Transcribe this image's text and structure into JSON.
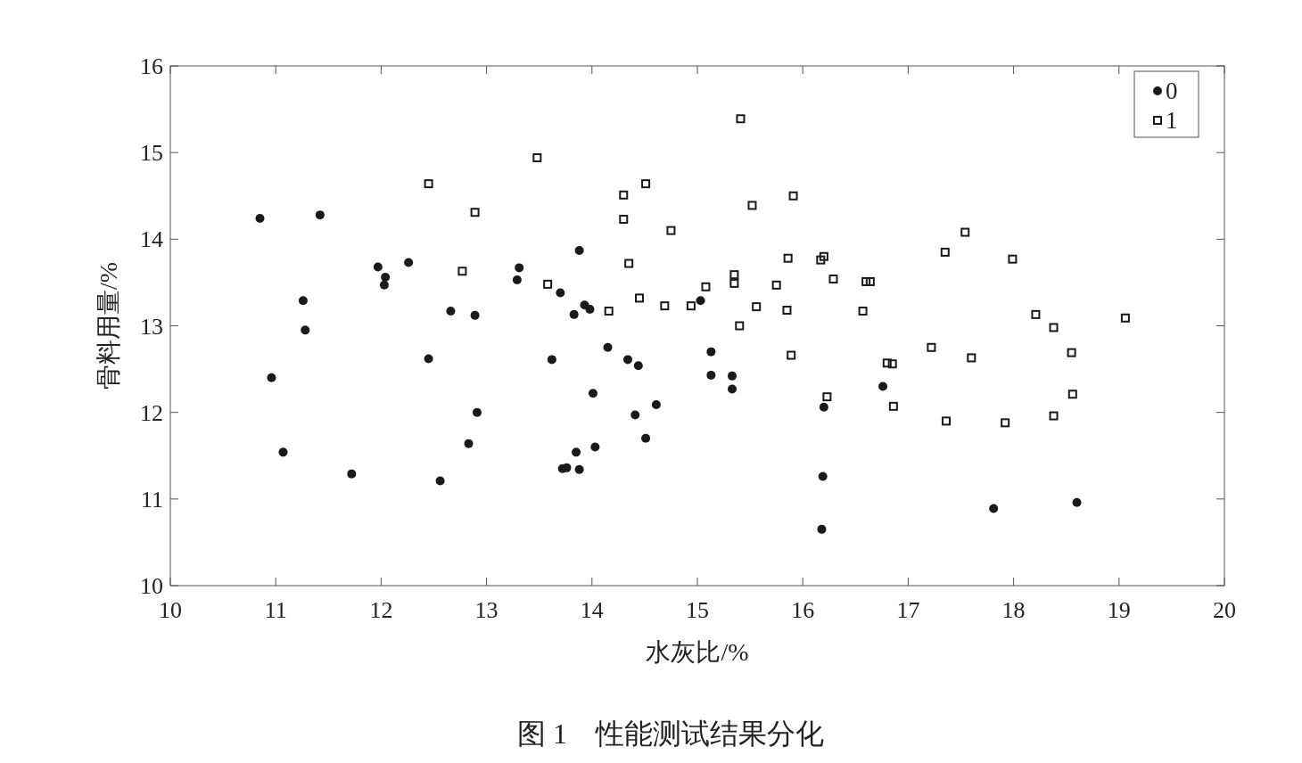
{
  "chart_data": {
    "type": "scatter",
    "title": "图 1　性能测试结果分化",
    "xlabel": "水灰比/%",
    "ylabel": "骨料用量/%",
    "xlim": [
      10,
      20
    ],
    "xticks": [
      10,
      11,
      12,
      13,
      14,
      15,
      16,
      17,
      18,
      19,
      20
    ],
    "ylim": [
      10,
      16
    ],
    "yticks": [
      10,
      11,
      12,
      13,
      14,
      15,
      16
    ],
    "grid": false,
    "legend": "top right",
    "series": [
      {
        "name": "0",
        "color": "#1a1a1a",
        "marker": "circle",
        "x": [
          10.85,
          11.42,
          11.26,
          11.28,
          10.96,
          11.07,
          11.72,
          11.97,
          12.04,
          12.03,
          12.26,
          12.45,
          12.66,
          12.89,
          12.91,
          12.83,
          12.56,
          13.31,
          13.29,
          13.62,
          13.7,
          13.88,
          13.93,
          13.98,
          13.83,
          14.15,
          14.01,
          14.03,
          13.85,
          13.72,
          13.76,
          13.88,
          14.34,
          14.44,
          14.41,
          14.51,
          14.61,
          15.03,
          15.13,
          15.13,
          15.33,
          15.33,
          16.2,
          16.19,
          16.18,
          16.76,
          17.81,
          18.6
        ],
        "values": [
          14.24,
          14.28,
          13.29,
          12.95,
          12.4,
          11.54,
          11.29,
          13.68,
          13.56,
          13.47,
          13.73,
          12.62,
          13.17,
          13.12,
          12.0,
          11.64,
          11.21,
          13.67,
          13.53,
          12.61,
          13.38,
          13.87,
          13.24,
          13.19,
          13.13,
          12.75,
          12.22,
          11.6,
          11.54,
          11.35,
          11.36,
          11.34,
          12.61,
          12.54,
          11.97,
          11.7,
          12.09,
          13.29,
          12.7,
          12.43,
          12.42,
          12.27,
          12.06,
          11.26,
          10.65,
          12.3,
          10.89,
          10.96
        ]
      },
      {
        "name": "1",
        "color": "#1a1a1a",
        "marker": "square",
        "x": [
          12.45,
          12.89,
          12.77,
          13.48,
          13.58,
          14.16,
          14.3,
          14.3,
          14.35,
          14.45,
          14.51,
          14.69,
          14.75,
          14.94,
          15.08,
          15.35,
          15.35,
          15.4,
          15.41,
          15.52,
          15.56,
          15.75,
          15.85,
          15.86,
          15.89,
          15.91,
          16.17,
          16.2,
          16.23,
          16.29,
          16.57,
          16.6,
          16.64,
          16.8,
          16.85,
          16.86,
          17.22,
          17.35,
          17.36,
          17.54,
          17.6,
          17.92,
          17.99,
          18.21,
          18.38,
          18.38,
          18.55,
          18.56,
          19.06
        ],
        "values": [
          14.64,
          14.31,
          13.63,
          14.94,
          13.48,
          13.17,
          14.51,
          14.23,
          13.72,
          13.32,
          14.64,
          13.23,
          14.1,
          13.23,
          13.45,
          13.59,
          13.49,
          13.0,
          15.39,
          14.39,
          13.22,
          13.47,
          13.18,
          13.78,
          12.66,
          14.5,
          13.76,
          13.8,
          12.18,
          13.54,
          13.17,
          13.51,
          13.51,
          12.57,
          12.56,
          12.07,
          12.75,
          13.85,
          11.9,
          14.08,
          12.63,
          11.88,
          13.77,
          13.13,
          12.98,
          11.96,
          12.69,
          12.21,
          13.09
        ]
      }
    ]
  }
}
